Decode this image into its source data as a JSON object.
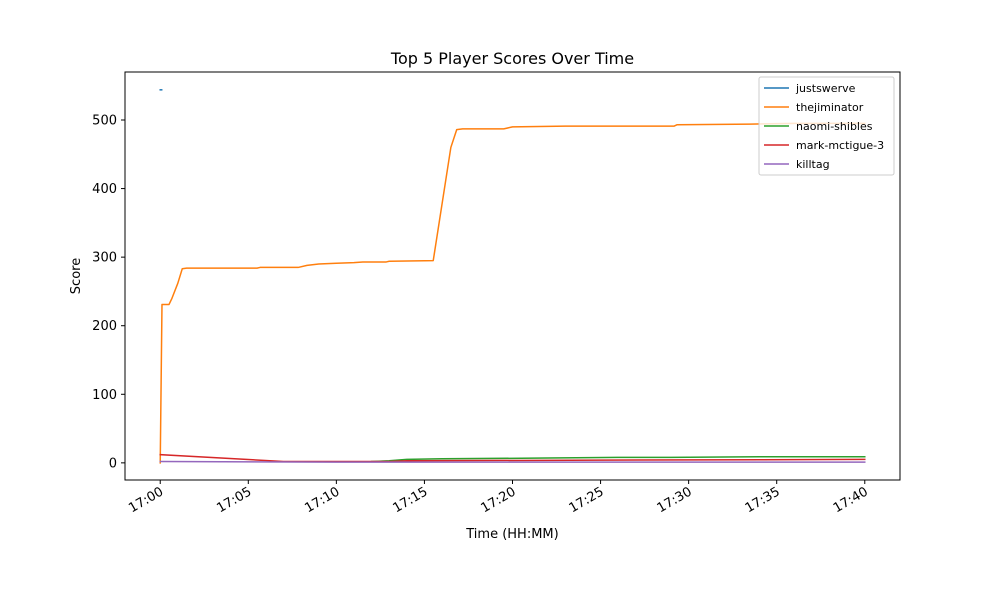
{
  "chart_data": {
    "type": "line",
    "title": "Top 5 Player Scores Over Time",
    "xlabel": "Time (HH:MM)",
    "ylabel": "Score",
    "xlim": [
      "16:58",
      "17:42"
    ],
    "ylim": [
      -25,
      570
    ],
    "x_ticks": [
      "17:00",
      "17:05",
      "17:10",
      "17:15",
      "17:20",
      "17:25",
      "17:30",
      "17:35",
      "17:40"
    ],
    "y_ticks": [
      0,
      100,
      200,
      300,
      400,
      500
    ],
    "grid": false,
    "legend_position": "top-right",
    "series": [
      {
        "name": "justswerve",
        "color": "#1f77b4",
        "points": [
          [
            "17:00:00",
            544
          ],
          [
            "17:00:05",
            544
          ]
        ]
      },
      {
        "name": "thejiminator",
        "color": "#ff7f0e",
        "points": [
          [
            "17:00:00",
            0
          ],
          [
            "17:00:06",
            231
          ],
          [
            "17:00:30",
            231
          ],
          [
            "17:00:40",
            240
          ],
          [
            "17:01:00",
            262
          ],
          [
            "17:01:15",
            283
          ],
          [
            "17:01:30",
            284
          ],
          [
            "17:05:30",
            284
          ],
          [
            "17:05:40",
            285
          ],
          [
            "17:07:50",
            285
          ],
          [
            "17:08:20",
            288
          ],
          [
            "17:09:00",
            290
          ],
          [
            "17:10:00",
            291
          ],
          [
            "17:11:00",
            292
          ],
          [
            "17:11:30",
            293
          ],
          [
            "17:12:50",
            293
          ],
          [
            "17:13:00",
            294
          ],
          [
            "17:15:30",
            295
          ],
          [
            "17:16:30",
            460
          ],
          [
            "17:16:50",
            486
          ],
          [
            "17:17:10",
            487
          ],
          [
            "17:19:30",
            487
          ],
          [
            "17:20:00",
            490
          ],
          [
            "17:23:00",
            491
          ],
          [
            "17:29:10",
            491
          ],
          [
            "17:29:20",
            493
          ],
          [
            "17:33:30",
            494
          ],
          [
            "17:36:00",
            495
          ],
          [
            "17:40:00",
            495
          ]
        ]
      },
      {
        "name": "naomi-shibles",
        "color": "#2ca02c",
        "points": [
          [
            "17:12:00",
            2
          ],
          [
            "17:13:00",
            3
          ],
          [
            "17:14:00",
            5
          ],
          [
            "17:16:00",
            6
          ],
          [
            "17:22:00",
            7
          ],
          [
            "17:26:00",
            8
          ],
          [
            "17:29:00",
            8
          ],
          [
            "17:34:00",
            9
          ],
          [
            "17:40:00",
            9
          ]
        ]
      },
      {
        "name": "mark-mctigue-3",
        "color": "#d62728",
        "points": [
          [
            "17:00:00",
            12
          ],
          [
            "17:07:00",
            2
          ],
          [
            "17:13:00",
            2
          ],
          [
            "17:14:00",
            3
          ],
          [
            "17:25:00",
            4
          ],
          [
            "17:40:00",
            5
          ]
        ]
      },
      {
        "name": "killtag",
        "color": "#9467bd",
        "points": [
          [
            "17:00:00",
            2
          ],
          [
            "17:10:00",
            1
          ],
          [
            "17:20:00",
            1
          ],
          [
            "17:30:00",
            1
          ],
          [
            "17:40:00",
            1
          ]
        ]
      }
    ]
  }
}
